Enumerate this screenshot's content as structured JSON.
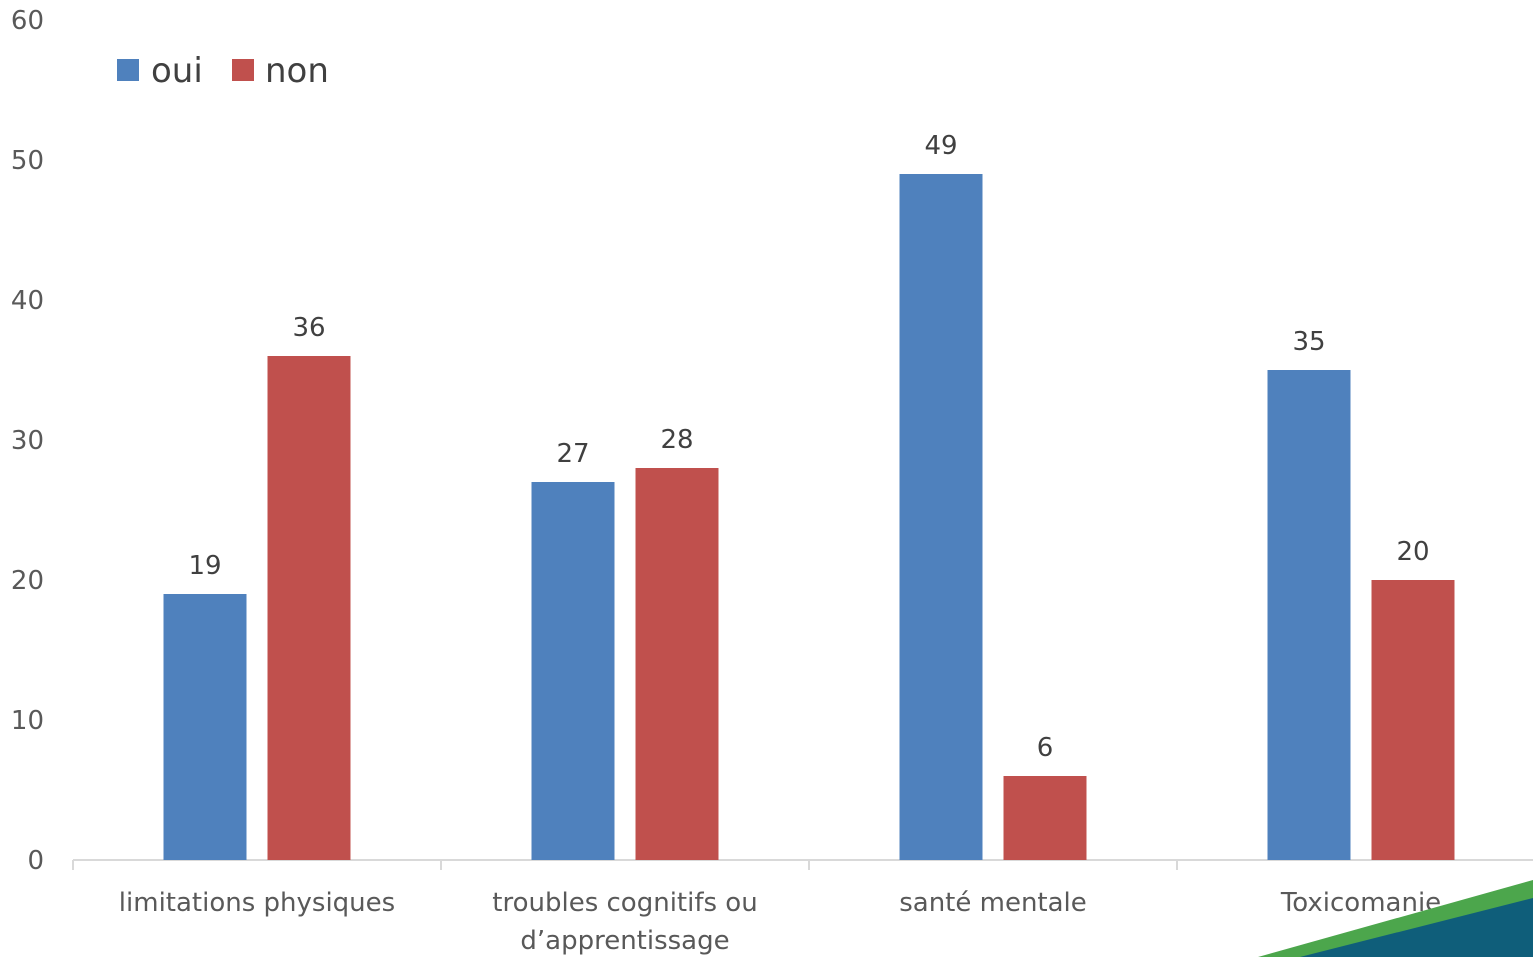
{
  "chart_data": {
    "type": "bar",
    "categories": [
      [
        "limitations physiques"
      ],
      [
        "troubles cognitifs ou",
        "d’apprentissage"
      ],
      [
        "santé mentale"
      ],
      [
        "Toxicomanie"
      ]
    ],
    "series": [
      {
        "name": "oui",
        "color": "#4F81BD",
        "values": [
          19,
          27,
          49,
          35
        ]
      },
      {
        "name": "non",
        "color": "#C0504D",
        "values": [
          36,
          28,
          6,
          20
        ]
      }
    ],
    "ylim": [
      0,
      60
    ],
    "yticks": [
      0,
      10,
      20,
      30,
      40,
      50,
      60
    ],
    "grid": false,
    "legend_position": "top-left",
    "data_labels": true
  },
  "decoration": {
    "corner_colors": [
      "#4CA64C",
      "#0F5E7A"
    ]
  }
}
